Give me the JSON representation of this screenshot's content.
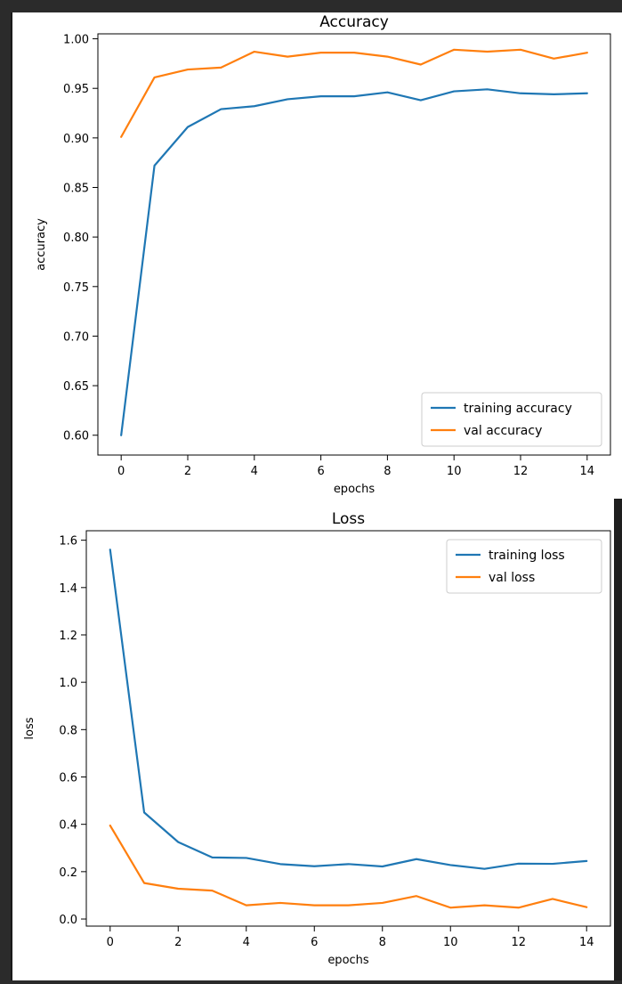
{
  "chart_data": [
    {
      "type": "line",
      "title": "Accuracy",
      "xlabel": "epochs",
      "ylabel": "accuracy",
      "x": [
        0,
        1,
        2,
        3,
        4,
        5,
        6,
        7,
        8,
        9,
        10,
        11,
        12,
        13,
        14
      ],
      "xlim": [
        -0.7,
        14.7
      ],
      "ylim": [
        0.58,
        1.005
      ],
      "xticks": [
        0,
        2,
        4,
        6,
        8,
        10,
        12,
        14
      ],
      "yticks": [
        0.6,
        0.65,
        0.7,
        0.75,
        0.8,
        0.85,
        0.9,
        0.95,
        1.0
      ],
      "ytick_labels": [
        "0.60",
        "0.65",
        "0.70",
        "0.75",
        "0.80",
        "0.85",
        "0.90",
        "0.95",
        "1.00"
      ],
      "legend_position": "lower-right",
      "grid": false,
      "series": [
        {
          "name": "training accuracy",
          "color": "#1f77b4",
          "values": [
            0.6,
            0.872,
            0.911,
            0.929,
            0.932,
            0.939,
            0.942,
            0.942,
            0.946,
            0.938,
            0.947,
            0.949,
            0.945,
            0.944,
            0.945
          ]
        },
        {
          "name": "val accuracy",
          "color": "#ff7f0e",
          "values": [
            0.901,
            0.961,
            0.969,
            0.971,
            0.987,
            0.982,
            0.986,
            0.986,
            0.982,
            0.974,
            0.989,
            0.987,
            0.989,
            0.98,
            0.986
          ]
        }
      ]
    },
    {
      "type": "line",
      "title": "Loss",
      "xlabel": "epochs",
      "ylabel": "loss",
      "x": [
        0,
        1,
        2,
        3,
        4,
        5,
        6,
        7,
        8,
        9,
        10,
        11,
        12,
        13,
        14
      ],
      "xlim": [
        -0.7,
        14.7
      ],
      "ylim": [
        -0.03,
        1.64
      ],
      "xticks": [
        0,
        2,
        4,
        6,
        8,
        10,
        12,
        14
      ],
      "yticks": [
        0.0,
        0.2,
        0.4,
        0.6,
        0.8,
        1.0,
        1.2,
        1.4,
        1.6
      ],
      "ytick_labels": [
        "0.0",
        "0.2",
        "0.4",
        "0.6",
        "0.8",
        "1.0",
        "1.2",
        "1.4",
        "1.6"
      ],
      "legend_position": "upper-right",
      "grid": false,
      "series": [
        {
          "name": "training loss",
          "color": "#1f77b4",
          "values": [
            1.56,
            0.45,
            0.325,
            0.26,
            0.258,
            0.232,
            0.223,
            0.232,
            0.222,
            0.253,
            0.228,
            0.212,
            0.234,
            0.233,
            0.245
          ]
        },
        {
          "name": "val loss",
          "color": "#ff7f0e",
          "values": [
            0.395,
            0.152,
            0.128,
            0.12,
            0.058,
            0.068,
            0.058,
            0.058,
            0.068,
            0.097,
            0.048,
            0.058,
            0.048,
            0.085,
            0.05
          ]
        }
      ]
    }
  ]
}
